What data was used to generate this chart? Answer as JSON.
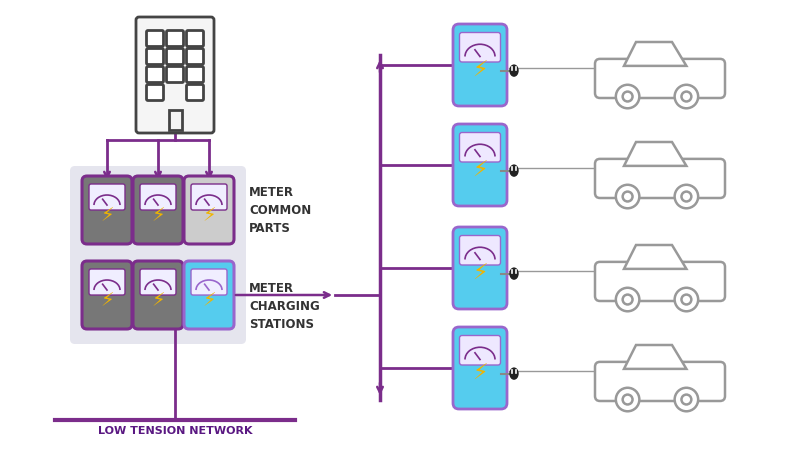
{
  "bg_color": "#ffffff",
  "purple": "#7B2D8B",
  "cyan": "#55CCEE",
  "gray_dark": "#777777",
  "gray_light": "#CCCCCC",
  "gray_bg": "#E5E5EE",
  "yellow": "#F0B400",
  "white": "#FFFFFF",
  "outline": "#444444",
  "car_color": "#999999",
  "meter_common_label": "METER\nCOMMON\nPARTS",
  "meter_charging_label": "METER\nCHARGING\nSTATIONS",
  "network_label": "LOW TENSION NETWORK",
  "building_win_cols": 3,
  "building_win_rows": 4
}
